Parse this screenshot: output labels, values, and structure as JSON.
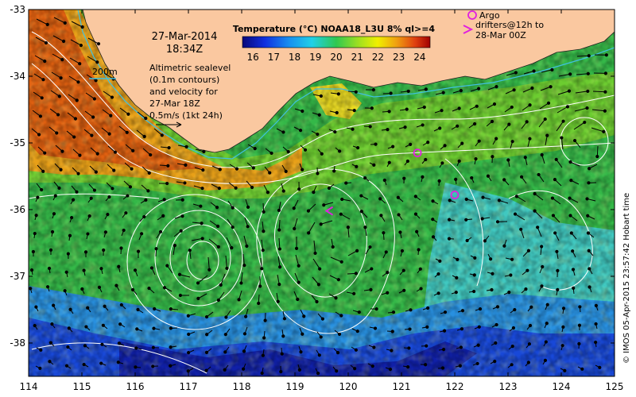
{
  "map": {
    "date": "27-Mar-2014",
    "time": "18:34Z",
    "colorbar_title": "Temperature (°C) NOAA18_L3U 8% ql>=4",
    "colorbar_ticks": [
      "16",
      "17",
      "18",
      "19",
      "20",
      "21",
      "22",
      "23",
      "24"
    ],
    "colorbar_range": [
      15.5,
      24.5
    ],
    "scale_contour_label": "200m",
    "legend_lines": [
      "Altimetric sealevel",
      "(0.1m contours)",
      "and velocity for",
      "27-Mar 18Z",
      "0.5m/s (1kt 24h)"
    ],
    "argo_label": "Argo",
    "drifter_lines": [
      "drifters@12h to",
      "28-Mar 00Z"
    ],
    "credit": "© IMOS 05-Apr-2015 23:57:42 Hobart time",
    "lon_ticks": [
      "114",
      "115",
      "116",
      "117",
      "118",
      "119",
      "120",
      "121",
      "122",
      "123",
      "124",
      "125"
    ],
    "lat_ticks": [
      "-33",
      "-34",
      "-35",
      "-36",
      "-37",
      "-38"
    ],
    "lon_range": [
      114,
      125
    ],
    "lat_range": [
      -33,
      -38.5
    ],
    "colors": {
      "land": "#fac8a0",
      "argo": "#e020e0",
      "contour": "#ffffff",
      "isobath": "#40c0e0",
      "arrow": "#000000"
    }
  },
  "argo_floats": [
    {
      "lon": 121.3,
      "lat": -35.15
    },
    {
      "lon": 122.0,
      "lat": -35.78
    }
  ],
  "drifters": [
    {
      "lon": 119.65,
      "lat": -36.02
    }
  ]
}
